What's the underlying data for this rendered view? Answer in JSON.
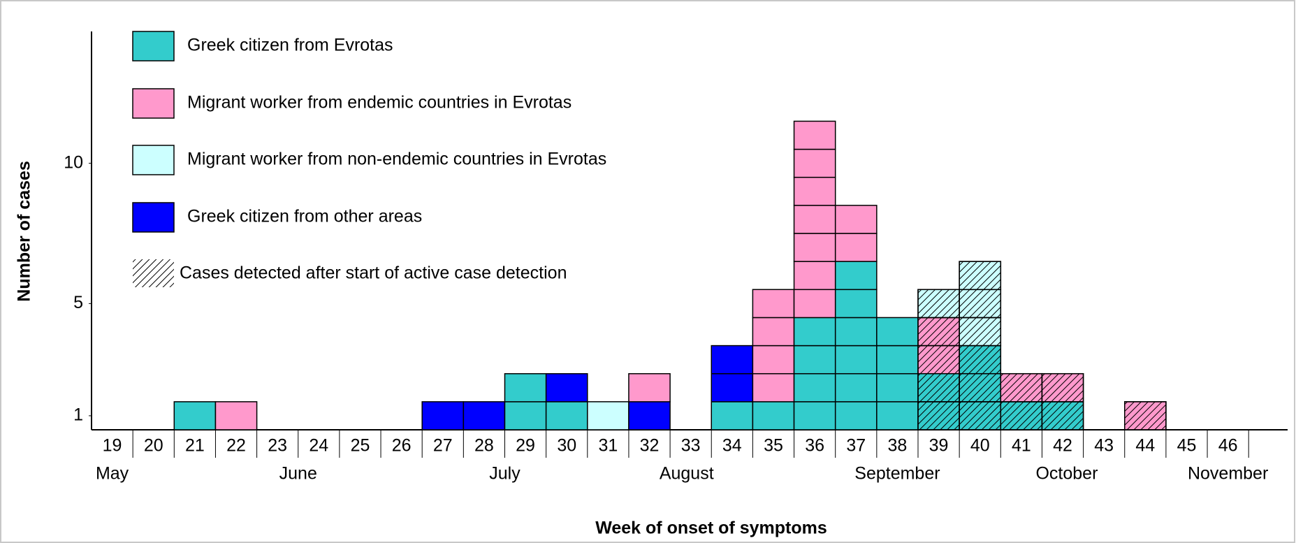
{
  "chart_data": {
    "type": "stacked_box",
    "x_label": "Week of onset of symptoms",
    "y_label": "Number of cases",
    "categories": [
      "19",
      "20",
      "21",
      "22",
      "23",
      "24",
      "25",
      "26",
      "27",
      "28",
      "29",
      "30",
      "31",
      "32",
      "33",
      "34",
      "35",
      "36",
      "37",
      "38",
      "39",
      "40",
      "41",
      "42",
      "43",
      "44",
      "45",
      "46"
    ],
    "months": [
      {
        "label": "May",
        "at": 19
      },
      {
        "label": "June",
        "at": 23.5
      },
      {
        "label": "July",
        "at": 28.5
      },
      {
        "label": "August",
        "at": 32.9
      },
      {
        "label": "September",
        "at": 38
      },
      {
        "label": "October",
        "at": 42.1
      },
      {
        "label": "November",
        "at": 46
      }
    ],
    "series": [
      {
        "name": "Greek citizen from Evrotas",
        "color": "#33cccc",
        "values": [
          0,
          0,
          1,
          0,
          0,
          0,
          0,
          0,
          0,
          0,
          2,
          1,
          0,
          0,
          0,
          1,
          1,
          4,
          6,
          4,
          2,
          3,
          1,
          1,
          0,
          0,
          0,
          0
        ]
      },
      {
        "name": "Migrant worker from endemic countries in Evrotas",
        "color": "#ff99cc",
        "values": [
          0,
          0,
          0,
          1,
          0,
          0,
          0,
          0,
          0,
          0,
          0,
          0,
          0,
          1,
          0,
          0,
          4,
          7,
          2,
          0,
          2,
          0,
          1,
          1,
          0,
          1,
          0,
          0
        ]
      },
      {
        "name": "Migrant worker from non-endemic countries in Evrotas",
        "color": "#ccffff",
        "values": [
          0,
          0,
          0,
          0,
          0,
          0,
          0,
          0,
          0,
          0,
          0,
          0,
          1,
          0,
          0,
          0,
          0,
          0,
          0,
          0,
          1,
          3,
          0,
          0,
          0,
          0,
          0,
          0
        ]
      },
      {
        "name": "Greek citizen from other areas",
        "color": "#0000ff",
        "values": [
          0,
          0,
          0,
          0,
          0,
          0,
          0,
          0,
          1,
          1,
          0,
          1,
          0,
          1,
          0,
          2,
          0,
          0,
          0,
          0,
          0,
          0,
          0,
          0,
          0,
          0,
          0,
          0
        ]
      }
    ],
    "hatch_legend": "Cases detected after start of active case detection",
    "hatched": [
      false,
      false,
      false,
      false,
      false,
      false,
      false,
      false,
      false,
      false,
      false,
      false,
      false,
      false,
      false,
      false,
      false,
      false,
      false,
      false,
      true,
      true,
      true,
      true,
      true,
      true,
      false,
      false
    ],
    "ylim": [
      0,
      14.2
    ],
    "yticks": [
      1,
      5,
      10
    ]
  }
}
